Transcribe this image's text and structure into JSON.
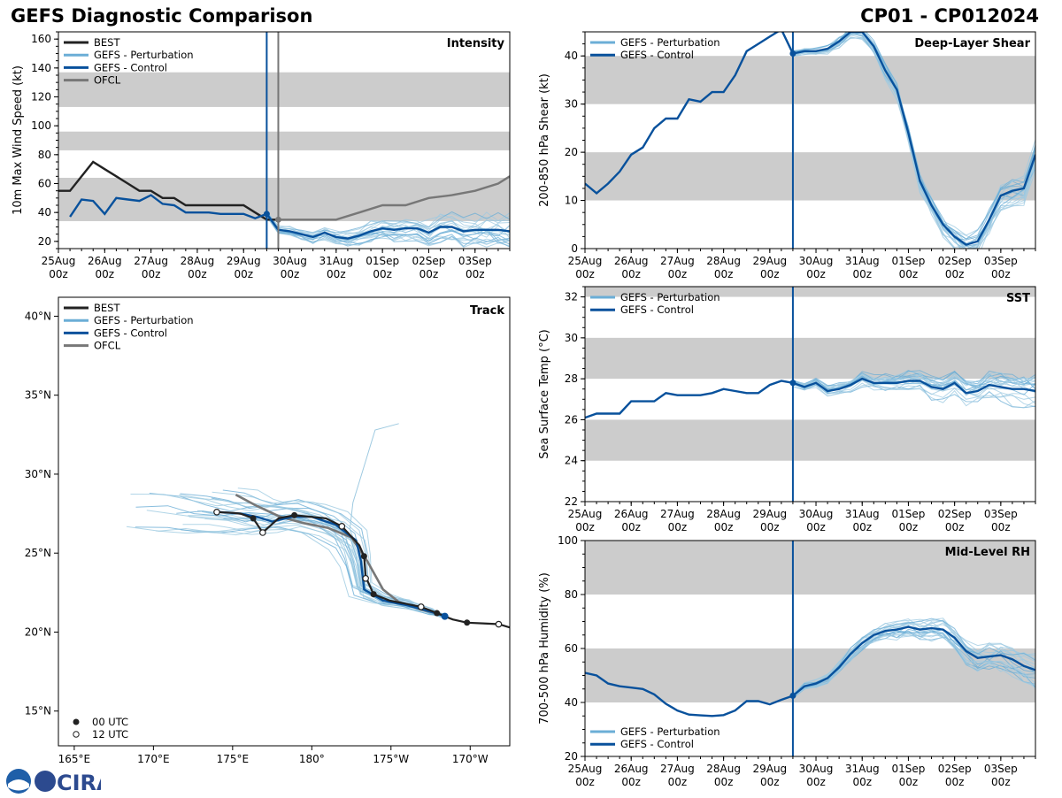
{
  "header": {
    "title_left": "GEFS Diagnostic Comparison",
    "title_right": "CP01 - CP012024"
  },
  "logo": {
    "text": "CIRA"
  },
  "colors": {
    "best": "#222222",
    "perturbation": "#6baed6",
    "perturbation_thin": "#9ecae1",
    "control": "#08519c",
    "ofcl": "#777777",
    "band": "#cccccc"
  },
  "time_axis": {
    "start": 0,
    "end": 9.75,
    "ticks": [
      {
        "t": 0,
        "label1": "25Aug",
        "label2": "00z"
      },
      {
        "t": 1,
        "label1": "26Aug",
        "label2": "00z"
      },
      {
        "t": 2,
        "label1": "27Aug",
        "label2": "00z"
      },
      {
        "t": 3,
        "label1": "28Aug",
        "label2": "00z"
      },
      {
        "t": 4,
        "label1": "29Aug",
        "label2": "00z"
      },
      {
        "t": 5,
        "label1": "30Aug",
        "label2": "00z"
      },
      {
        "t": 6,
        "label1": "31Aug",
        "label2": "00z"
      },
      {
        "t": 7,
        "label1": "01Sep",
        "label2": "00z"
      },
      {
        "t": 8,
        "label1": "02Sep",
        "label2": "00z"
      },
      {
        "t": 9,
        "label1": "03Sep",
        "label2": "00z"
      }
    ],
    "init_time": 4.5
  },
  "chart_data": [
    {
      "id": "intensity",
      "type": "line",
      "title": "Intensity",
      "ylabel": "10m Max Wind Speed (kt)",
      "ylim": [
        15,
        165
      ],
      "yticks": [
        20,
        40,
        60,
        80,
        100,
        120,
        140,
        160
      ],
      "bands": [
        [
          34,
          64
        ],
        [
          83,
          96
        ],
        [
          113,
          137
        ]
      ],
      "legend": [
        "BEST",
        "GEFS - Perturbation",
        "GEFS - Control",
        "OFCL"
      ],
      "ofcl_time": 4.75,
      "series": [
        {
          "name": "BEST",
          "x": [
            0,
            0.25,
            0.5,
            0.75,
            1,
            1.25,
            1.5,
            1.75,
            2,
            2.25,
            2.5,
            2.75,
            3,
            3.25,
            3.5,
            3.75,
            4,
            4.25,
            4.5,
            4.75
          ],
          "values": [
            55,
            55,
            65,
            75,
            70,
            65,
            60,
            55,
            55,
            50,
            50,
            45,
            45,
            45,
            45,
            45,
            45,
            40,
            35,
            35
          ]
        },
        {
          "name": "GEFS - Control",
          "x": [
            0.25,
            0.5,
            0.75,
            1,
            1.25,
            1.5,
            1.75,
            2,
            2.25,
            2.5,
            2.75,
            3,
            3.25,
            3.5,
            3.75,
            4,
            4.25,
            4.5,
            4.75,
            5,
            5.25,
            5.5,
            5.75,
            6,
            6.25,
            6.5,
            6.75,
            7,
            7.25,
            7.5,
            7.75,
            8,
            8.25,
            8.5,
            8.75,
            9,
            9.25,
            9.5,
            9.75
          ],
          "values": [
            37,
            49,
            48,
            39,
            50,
            49,
            48,
            52,
            46,
            45,
            40,
            40,
            40,
            39,
            39,
            39,
            36,
            39,
            28,
            27,
            25,
            23,
            26,
            23,
            22,
            24,
            27,
            29,
            28,
            29,
            29,
            26,
            30,
            30,
            27,
            28,
            28,
            28,
            27
          ]
        },
        {
          "name": "OFCL",
          "x": [
            4.75,
            5,
            5.5,
            6,
            6.5,
            7,
            7.5,
            8,
            8.5,
            9,
            9.5,
            9.75
          ],
          "values": [
            35,
            35,
            35,
            35,
            40,
            45,
            45,
            50,
            52,
            55,
            60,
            65
          ]
        }
      ]
    },
    {
      "id": "shear",
      "type": "line",
      "title": "Deep-Layer Shear",
      "ylabel": "200-850 hPa Shear (kt)",
      "ylim": [
        0,
        45
      ],
      "yticks": [
        0,
        10,
        20,
        30,
        40
      ],
      "bands": [
        [
          10,
          20
        ],
        [
          30,
          40
        ]
      ],
      "legend": [
        "GEFS - Perturbation",
        "GEFS - Control"
      ],
      "series": [
        {
          "name": "GEFS - Control",
          "x": [
            0,
            0.25,
            0.5,
            0.75,
            1,
            1.25,
            1.5,
            1.75,
            2,
            2.25,
            2.5,
            2.75,
            3,
            3.25,
            3.5,
            3.75,
            4,
            4.25,
            4.5,
            4.75,
            5,
            5.25,
            5.5,
            5.75,
            6,
            6.25,
            6.5,
            6.75,
            7,
            7.25,
            7.5,
            7.75,
            8,
            8.25,
            8.5,
            8.75,
            9,
            9.25,
            9.5,
            9.75
          ],
          "values": [
            13.5,
            11.5,
            13.5,
            16,
            19.5,
            21,
            25,
            27,
            27,
            31,
            30.5,
            32.5,
            32.5,
            36,
            41,
            42.5,
            44,
            45.5,
            40.5,
            41,
            41,
            41.5,
            43,
            45,
            45,
            42,
            37,
            33,
            24,
            14,
            9,
            5,
            2.5,
            0.8,
            1.5,
            6,
            11,
            12,
            12.5,
            19.5
          ]
        }
      ]
    },
    {
      "id": "sst",
      "type": "line",
      "title": "SST",
      "ylabel": "Sea Surface Temp (°C)",
      "ylim": [
        22,
        32.5
      ],
      "yticks": [
        22,
        24,
        26,
        28,
        30,
        32
      ],
      "bands": [
        [
          24,
          26
        ],
        [
          28,
          30
        ],
        [
          32,
          32.5
        ]
      ],
      "legend": [
        "GEFS - Perturbation",
        "GEFS - Control"
      ],
      "series": [
        {
          "name": "GEFS - Control",
          "x": [
            0,
            0.25,
            0.5,
            0.75,
            1,
            1.25,
            1.5,
            1.75,
            2,
            2.25,
            2.5,
            2.75,
            3,
            3.25,
            3.5,
            3.75,
            4,
            4.25,
            4.5,
            4.75,
            5,
            5.25,
            5.5,
            5.75,
            6,
            6.25,
            6.5,
            6.75,
            7,
            7.25,
            7.5,
            7.75,
            8,
            8.25,
            8.5,
            8.75,
            9,
            9.25,
            9.5,
            9.75
          ],
          "values": [
            26.1,
            26.3,
            26.3,
            26.3,
            26.9,
            26.9,
            26.9,
            27.3,
            27.2,
            27.2,
            27.2,
            27.3,
            27.5,
            27.4,
            27.3,
            27.3,
            27.7,
            27.9,
            27.8,
            27.6,
            27.8,
            27.4,
            27.5,
            27.7,
            28.0,
            27.8,
            27.8,
            27.8,
            27.9,
            27.9,
            27.6,
            27.5,
            27.8,
            27.3,
            27.4,
            27.7,
            27.6,
            27.5,
            27.5,
            27.4
          ]
        }
      ]
    },
    {
      "id": "rh",
      "type": "line",
      "title": "Mid-Level RH",
      "ylabel": "700-500 hPa Humidity (%)",
      "ylim": [
        20,
        100
      ],
      "yticks": [
        20,
        40,
        60,
        80,
        100
      ],
      "bands": [
        [
          40,
          60
        ],
        [
          80,
          100
        ]
      ],
      "legend": [
        "GEFS - Perturbation",
        "GEFS - Control"
      ],
      "series": [
        {
          "name": "GEFS - Control",
          "x": [
            0,
            0.25,
            0.5,
            0.75,
            1,
            1.25,
            1.5,
            1.75,
            2,
            2.25,
            2.5,
            2.75,
            3,
            3.25,
            3.5,
            3.75,
            4,
            4.25,
            4.5,
            4.75,
            5,
            5.25,
            5.5,
            5.75,
            6,
            6.25,
            6.5,
            6.75,
            7,
            7.25,
            7.5,
            7.75,
            8,
            8.25,
            8.5,
            8.75,
            9,
            9.25,
            9.5,
            9.75
          ],
          "values": [
            51,
            50,
            47,
            46,
            45.5,
            45,
            43,
            39.5,
            37,
            35.5,
            35.2,
            35,
            35.3,
            37,
            40.5,
            40.5,
            39.3,
            41,
            42.5,
            46,
            47,
            49,
            53,
            58,
            62,
            65,
            66.5,
            67,
            68,
            67,
            67.5,
            67,
            64,
            59,
            56.5,
            57,
            57.5,
            56,
            53.5,
            52
          ]
        }
      ]
    },
    {
      "id": "track",
      "type": "scatter",
      "title": "Track",
      "lon_range": [
        164,
        192.5
      ],
      "lat_range": [
        12.8,
        41.2
      ],
      "lon_ticks": [
        {
          "lon": 165,
          "label": "165°E"
        },
        {
          "lon": 170,
          "label": "170°E"
        },
        {
          "lon": 175,
          "label": "175°E"
        },
        {
          "lon": 180,
          "label": "180°"
        },
        {
          "lon": 185,
          "label": "175°W"
        },
        {
          "lon": 190,
          "label": "170°W"
        }
      ],
      "lat_ticks": [
        {
          "lat": 15,
          "label": "15°N"
        },
        {
          "lat": 20,
          "label": "20°N"
        },
        {
          "lat": 25,
          "label": "25°N"
        },
        {
          "lat": 30,
          "label": "30°N"
        },
        {
          "lat": 35,
          "label": "35°N"
        },
        {
          "lat": 40,
          "label": "40°N"
        }
      ],
      "legend": [
        "BEST",
        "GEFS - Perturbation",
        "GEFS - Control",
        "OFCL"
      ],
      "marker_legend": [
        "00 UTC",
        "12 UTC"
      ],
      "best_track": [
        [
          192.8,
          20.2
        ],
        [
          191.8,
          20.5
        ],
        [
          190.8,
          20.55
        ],
        [
          189.8,
          20.6
        ],
        [
          188.9,
          20.8
        ],
        [
          187.9,
          21.2
        ],
        [
          186.9,
          21.6
        ],
        [
          185.9,
          21.8
        ],
        [
          184.9,
          22.0
        ],
        [
          183.9,
          22.4
        ],
        [
          183.4,
          23.5
        ],
        [
          183.3,
          24.8
        ],
        [
          183.0,
          25.5
        ],
        [
          181.9,
          26.7
        ],
        [
          180.9,
          27.2
        ],
        [
          179.9,
          27.3
        ],
        [
          178.9,
          27.4
        ],
        [
          177.9,
          27.2
        ],
        [
          176.9,
          26.3
        ],
        [
          176.3,
          27.2
        ],
        [
          175.5,
          27.5
        ],
        [
          175.0,
          27.55
        ],
        [
          174.0,
          27.6
        ]
      ],
      "best_00utc": [
        [
          189.8,
          20.6
        ],
        [
          187.9,
          21.2
        ],
        [
          183.9,
          22.4
        ],
        [
          183.3,
          24.8
        ],
        [
          178.9,
          27.4
        ],
        [
          176.3,
          27.2
        ]
      ],
      "best_12utc": [
        [
          191.8,
          20.5
        ],
        [
          186.9,
          21.6
        ],
        [
          183.4,
          23.4
        ],
        [
          181.9,
          26.7
        ],
        [
          176.9,
          26.3
        ],
        [
          174.0,
          27.6
        ]
      ],
      "control_track": [
        [
          188.4,
          21.0
        ],
        [
          187.5,
          21.3
        ],
        [
          186.0,
          21.7
        ],
        [
          184.5,
          22.0
        ],
        [
          183.3,
          22.7
        ],
        [
          183.1,
          24.5
        ],
        [
          182.8,
          25.8
        ],
        [
          181.5,
          26.8
        ],
        [
          180.0,
          27.3
        ],
        [
          178.8,
          27.3
        ],
        [
          177.5,
          27.0
        ],
        [
          176.5,
          27.3
        ],
        [
          175.5,
          27.5
        ],
        [
          174.2,
          27.6
        ]
      ],
      "ofcl_track": [
        [
          188.2,
          21.1
        ],
        [
          187.0,
          21.4
        ],
        [
          185.5,
          21.9
        ],
        [
          184.5,
          22.7
        ],
        [
          183.5,
          24.5
        ],
        [
          182.5,
          26.0
        ],
        [
          181.0,
          26.6
        ],
        [
          179.5,
          26.9
        ],
        [
          178.0,
          27.3
        ],
        [
          176.5,
          28.0
        ],
        [
          175.2,
          28.7
        ]
      ],
      "control_point": [
        188.4,
        21.0
      ]
    }
  ]
}
